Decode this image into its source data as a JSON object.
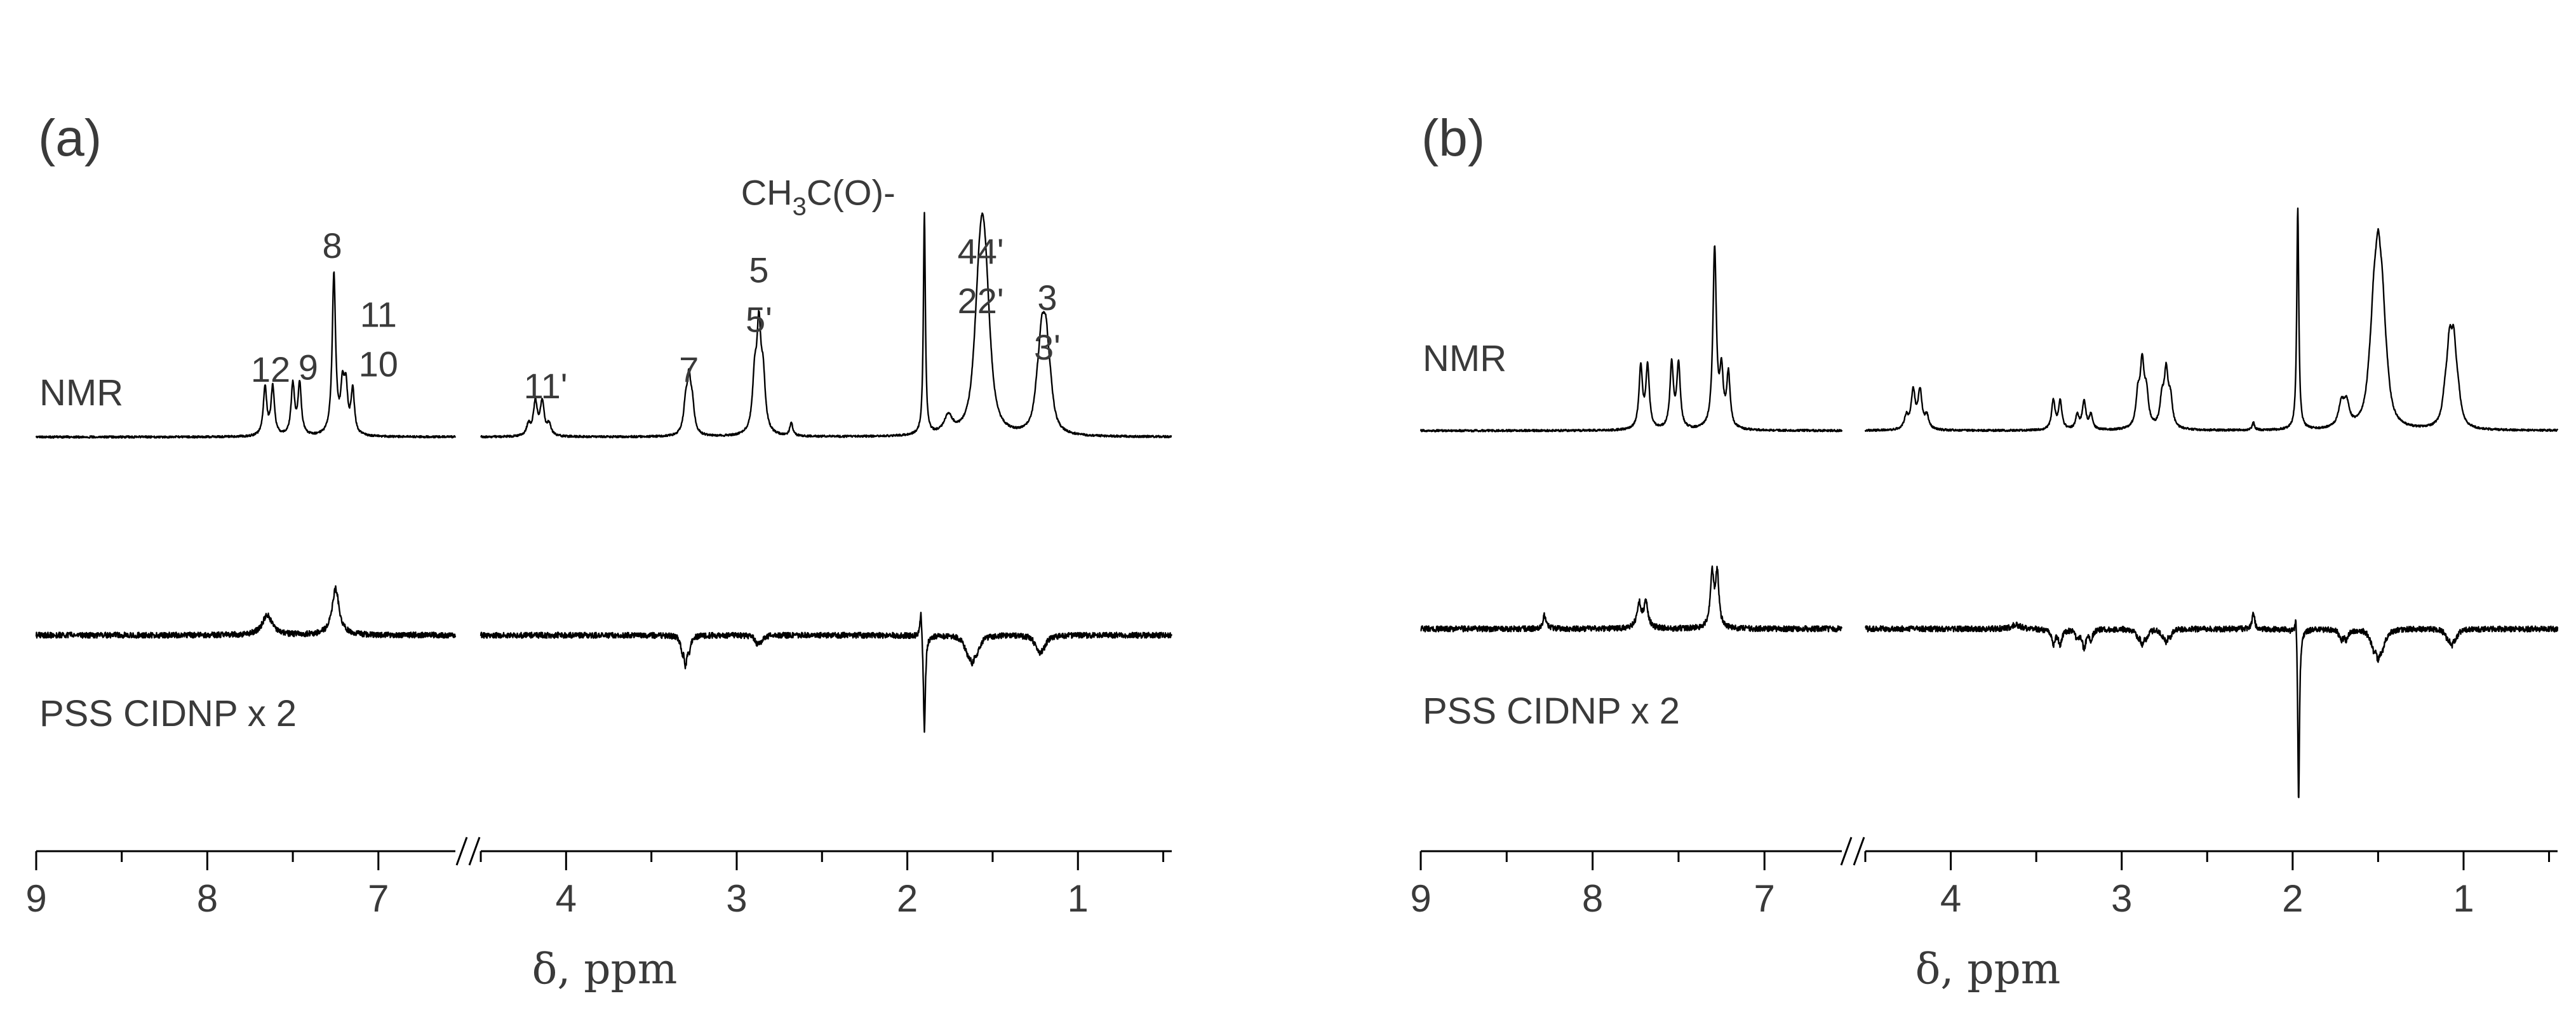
{
  "chart_data": [
    {
      "type": "line",
      "panel_label": "(a)",
      "xlabel": "δ, ppm",
      "x_axis": {
        "reversed": true,
        "break_between": [
          6.55,
          4.5
        ],
        "left_segment": {
          "range": [
            9.0,
            6.55
          ],
          "ticks": [
            9,
            8,
            7
          ],
          "minor_step": 0.5
        },
        "right_segment": {
          "range": [
            4.5,
            0.45
          ],
          "ticks": [
            4,
            3,
            2,
            1
          ],
          "minor_step": 0.5
        }
      },
      "grid": false,
      "series": [
        {
          "name": "NMR",
          "role": "upper trace",
          "peaks": [
            {
              "ppm": 7.64,
              "height": 0.44,
              "width": 0.012,
              "mult": 2,
              "j": 0.045
            },
            {
              "ppm": 7.48,
              "height": 0.46,
              "width": 0.012,
              "mult": 2,
              "j": 0.04
            },
            {
              "ppm": 7.26,
              "height": 1.45,
              "width": 0.012,
              "mult": 1
            },
            {
              "ppm": 7.21,
              "height": 0.4,
              "width": 0.012,
              "mult": 1
            },
            {
              "ppm": 7.17,
              "height": 0.4,
              "width": 0.012,
              "mult": 2,
              "j": 0.04
            },
            {
              "ppm": 4.16,
              "height": 0.3,
              "width": 0.014,
              "mult": 4,
              "j": 0.04
            },
            {
              "ppm": 3.28,
              "height": 0.46,
              "width": 0.014,
              "mult": 3,
              "j": 0.02
            },
            {
              "ppm": 2.87,
              "height": 0.9,
              "width": 0.015,
              "mult": 3,
              "j": 0.025
            },
            {
              "ppm": 2.68,
              "height": 0.12,
              "width": 0.01,
              "mult": 1
            },
            {
              "ppm": 1.9,
              "height": 2.0,
              "width": 0.007,
              "mult": 1
            },
            {
              "ppm": 1.76,
              "height": 0.16,
              "width": 0.03,
              "mult": 1
            },
            {
              "ppm": 1.56,
              "height": 1.08,
              "width": 0.026,
              "mult": 5,
              "j": 0.022
            },
            {
              "ppm": 1.2,
              "height": 0.66,
              "width": 0.022,
              "mult": 4,
              "j": 0.025
            }
          ]
        },
        {
          "name": "PSS CIDNP x 2",
          "role": "lower trace",
          "peaks": [
            {
              "ppm": 7.65,
              "height": 0.18,
              "width": 0.035,
              "mult": 1
            },
            {
              "ppm": 7.25,
              "height": 0.42,
              "width": 0.025,
              "mult": 1
            },
            {
              "ppm": 3.3,
              "height": -0.24,
              "width": 0.01,
              "mult": 3,
              "j": 0.02
            },
            {
              "ppm": 2.87,
              "height": -0.06,
              "width": 0.012,
              "mult": 2,
              "j": 0.025
            },
            {
              "ppm": 1.92,
              "height": 0.28,
              "width": 0.008,
              "mult": 1
            },
            {
              "ppm": 1.9,
              "height": -0.9,
              "width": 0.007,
              "mult": 1
            },
            {
              "ppm": 1.62,
              "height": -0.18,
              "width": 0.016,
              "mult": 5,
              "j": 0.025
            },
            {
              "ppm": 1.22,
              "height": -0.12,
              "width": 0.018,
              "mult": 3,
              "j": 0.025
            }
          ]
        }
      ],
      "annotations": [
        {
          "id": "lbl-12",
          "lines": [
            "12"
          ],
          "ppm": 7.63,
          "above": 0.5
        },
        {
          "id": "lbl-9",
          "lines": [
            "9"
          ],
          "ppm": 7.41,
          "above": 0.52
        },
        {
          "id": "lbl-8",
          "lines": [
            "8"
          ],
          "ppm": 7.27,
          "above": 1.62
        },
        {
          "id": "lbl-11-10",
          "lines": [
            "11",
            "10"
          ],
          "ppm": 7.0,
          "above": 0.55
        },
        {
          "id": "lbl-11p",
          "lines": [
            "11'"
          ],
          "ppm": 4.12,
          "above": 0.35
        },
        {
          "id": "lbl-7",
          "lines": [
            "7"
          ],
          "ppm": 3.28,
          "above": 0.5
        },
        {
          "id": "lbl-5",
          "lines": [
            "5",
            "5'"
          ],
          "ppm": 2.87,
          "above": 0.95
        },
        {
          "id": "lbl-ch3",
          "lines": [
            "CH",
            "3",
            "C(O)-"
          ],
          "ppm": 2.07,
          "above": 2.1,
          "subscript": true
        },
        {
          "id": "lbl-44",
          "lines": [
            "44'",
            "22'"
          ],
          "ppm": 1.57,
          "above": 1.12
        },
        {
          "id": "lbl-3",
          "lines": [
            "3",
            "3'"
          ],
          "ppm": 1.18,
          "above": 0.7
        }
      ]
    },
    {
      "type": "line",
      "panel_label": "(b)",
      "xlabel": "δ, ppm",
      "x_axis": {
        "reversed": true,
        "break_between": [
          6.55,
          4.5
        ],
        "left_segment": {
          "range": [
            9.0,
            6.55
          ],
          "ticks": [
            9,
            8,
            7
          ],
          "minor_step": 0.5
        },
        "right_segment": {
          "range": [
            4.5,
            0.45
          ],
          "ticks": [
            4,
            3,
            2,
            1
          ],
          "minor_step": 0.5
        }
      },
      "grid": false,
      "series": [
        {
          "name": "NMR",
          "role": "upper trace",
          "peaks": [
            {
              "ppm": 7.7,
              "height": 0.56,
              "width": 0.012,
              "mult": 2,
              "j": 0.04
            },
            {
              "ppm": 7.52,
              "height": 0.58,
              "width": 0.012,
              "mult": 2,
              "j": 0.04
            },
            {
              "ppm": 7.29,
              "height": 1.62,
              "width": 0.012,
              "mult": 1
            },
            {
              "ppm": 7.23,
              "height": 0.48,
              "width": 0.012,
              "mult": 2,
              "j": 0.04
            },
            {
              "ppm": 4.2,
              "height": 0.34,
              "width": 0.014,
              "mult": 4,
              "j": 0.04
            },
            {
              "ppm": 3.38,
              "height": 0.26,
              "width": 0.012,
              "mult": 2,
              "j": 0.04
            },
            {
              "ppm": 3.22,
              "height": 0.26,
              "width": 0.012,
              "mult": 3,
              "j": 0.04
            },
            {
              "ppm": 2.88,
              "height": 0.55,
              "width": 0.014,
              "mult": 3,
              "j": 0.025
            },
            {
              "ppm": 2.74,
              "height": 0.48,
              "width": 0.014,
              "mult": 3,
              "j": 0.025
            },
            {
              "ppm": 2.23,
              "height": 0.07,
              "width": 0.008,
              "mult": 1
            },
            {
              "ppm": 1.97,
              "height": 2.0,
              "width": 0.007,
              "mult": 1
            },
            {
              "ppm": 1.7,
              "height": 0.2,
              "width": 0.02,
              "mult": 2,
              "j": 0.03
            },
            {
              "ppm": 1.5,
              "height": 1.1,
              "width": 0.022,
              "mult": 5,
              "j": 0.025
            },
            {
              "ppm": 1.07,
              "height": 0.62,
              "width": 0.018,
              "mult": 4,
              "j": 0.025
            }
          ]
        },
        {
          "name": "PSS CIDNP x 2",
          "role": "lower trace",
          "peaks": [
            {
              "ppm": 8.28,
              "height": 0.12,
              "width": 0.012,
              "mult": 1
            },
            {
              "ppm": 7.71,
              "height": 0.22,
              "width": 0.015,
              "mult": 2,
              "j": 0.04
            },
            {
              "ppm": 7.29,
              "height": 0.48,
              "width": 0.012,
              "mult": 2,
              "j": 0.03
            },
            {
              "ppm": 3.62,
              "height": 0.04,
              "width": 0.03,
              "mult": 1
            },
            {
              "ppm": 3.38,
              "height": -0.14,
              "width": 0.012,
              "mult": 2,
              "j": 0.04
            },
            {
              "ppm": 3.22,
              "height": -0.17,
              "width": 0.012,
              "mult": 3,
              "j": 0.04
            },
            {
              "ppm": 2.88,
              "height": -0.12,
              "width": 0.012,
              "mult": 3,
              "j": 0.025
            },
            {
              "ppm": 2.74,
              "height": -0.1,
              "width": 0.012,
              "mult": 3,
              "j": 0.025
            },
            {
              "ppm": 2.23,
              "height": 0.16,
              "width": 0.008,
              "mult": 1
            },
            {
              "ppm": 1.98,
              "height": 0.26,
              "width": 0.007,
              "mult": 1
            },
            {
              "ppm": 1.965,
              "height": -1.6,
              "width": 0.006,
              "mult": 1
            },
            {
              "ppm": 1.7,
              "height": -0.08,
              "width": 0.015,
              "mult": 2,
              "j": 0.03
            },
            {
              "ppm": 1.5,
              "height": -0.2,
              "width": 0.015,
              "mult": 5,
              "j": 0.025
            },
            {
              "ppm": 1.07,
              "height": -0.12,
              "width": 0.015,
              "mult": 3,
              "j": 0.025
            }
          ]
        }
      ],
      "annotations": []
    }
  ]
}
